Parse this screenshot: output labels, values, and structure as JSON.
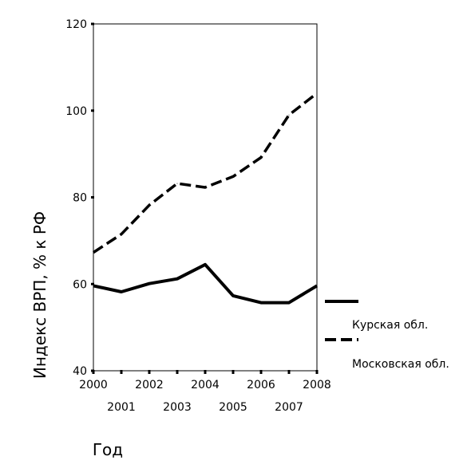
{
  "chart_data": {
    "type": "line",
    "x": [
      2000,
      2001,
      2002,
      2003,
      2004,
      2005,
      2006,
      2007,
      2008
    ],
    "x_tick_labels": [
      "2000",
      "2001",
      "2002",
      "2003",
      "2004",
      "2005",
      "2006",
      "2007",
      "2008"
    ],
    "y_ticks": [
      40,
      60,
      80,
      100,
      120
    ],
    "y_tick_labels": [
      "40",
      "60",
      "80",
      "100",
      "120"
    ],
    "ylim": [
      40,
      120
    ],
    "xlim": [
      2000,
      2008
    ],
    "xlabel": "Год",
    "ylabel": "Индекс ВРП, % к РФ",
    "grid": false,
    "legend_position": "right",
    "series": [
      {
        "name": "Курская обл.",
        "style": "solid",
        "color": "#000000",
        "values": [
          59.6,
          58.2,
          60.1,
          61.2,
          64.5,
          57.3,
          55.7,
          55.7,
          59.6
        ]
      },
      {
        "name": "Московская обл.",
        "style": "dashed",
        "color": "#000000",
        "values": [
          67.3,
          71.5,
          78.2,
          83.2,
          82.3,
          84.8,
          89.2,
          99.0,
          104.0
        ]
      }
    ]
  }
}
